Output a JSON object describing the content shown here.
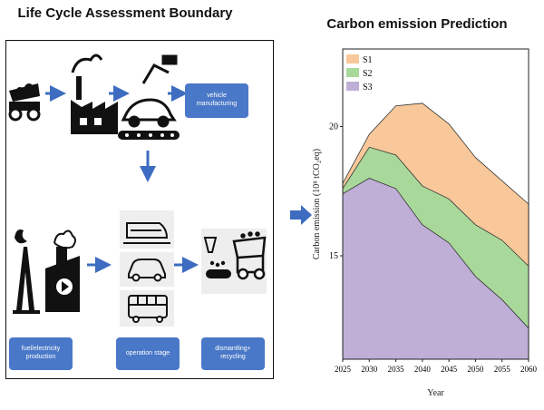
{
  "left_panel": {
    "title": "Life Cycle Assessment Boundary",
    "labels": {
      "vehicle_manufacturing": "vehicle\nmanufacturing",
      "fuel_electricity_production": "fuel/electricity\nproduction",
      "operation_stage": "operation stage",
      "dismantling_recycling": "dismantling+\nrecycling"
    },
    "colors": {
      "label_bg": "#4a78c8",
      "icon": "#111111",
      "arrow": "#3d6cc0"
    },
    "icons": [
      "dump-truck-icon",
      "factory-icon",
      "robot-arm-assembly-icon",
      "oil-well-icon",
      "power-plant-icon",
      "train-icon",
      "car-icon",
      "bus-icon",
      "shredder-icon",
      "recycling-truck-icon"
    ]
  },
  "right_panel": {
    "title": "Carbon emission Prediction"
  },
  "chart_data": {
    "type": "area",
    "stacked": true,
    "title": "Carbon emission Prediction",
    "xlabel": "Year",
    "ylabel": "Carbon emission (10⁸ tCO₂eq)",
    "x": [
      2025,
      2030,
      2035,
      2040,
      2045,
      2050,
      2055,
      2060
    ],
    "xticks": [
      "2025",
      "2030",
      "2035",
      "2040",
      "2045",
      "2050",
      "2055",
      "2060"
    ],
    "yticks": [
      "15",
      "20"
    ],
    "ylim": [
      11.0,
      23.0
    ],
    "xlim": [
      2025,
      2060
    ],
    "legend_position": "top-left",
    "series": [
      {
        "name": "S3",
        "color": "#bfaed6",
        "values": [
          17.4,
          18.0,
          17.6,
          16.2,
          15.5,
          14.2,
          13.3,
          12.2
        ]
      },
      {
        "name": "S2",
        "color": "#a9d89b",
        "values": [
          17.6,
          19.2,
          18.9,
          17.7,
          17.2,
          16.2,
          15.6,
          14.6
        ]
      },
      {
        "name": "S1",
        "color": "#f8c89a",
        "values": [
          17.8,
          19.7,
          20.8,
          20.9,
          20.1,
          18.8,
          17.9,
          17.0
        ]
      }
    ],
    "legend": [
      "S1",
      "S2",
      "S3"
    ]
  }
}
